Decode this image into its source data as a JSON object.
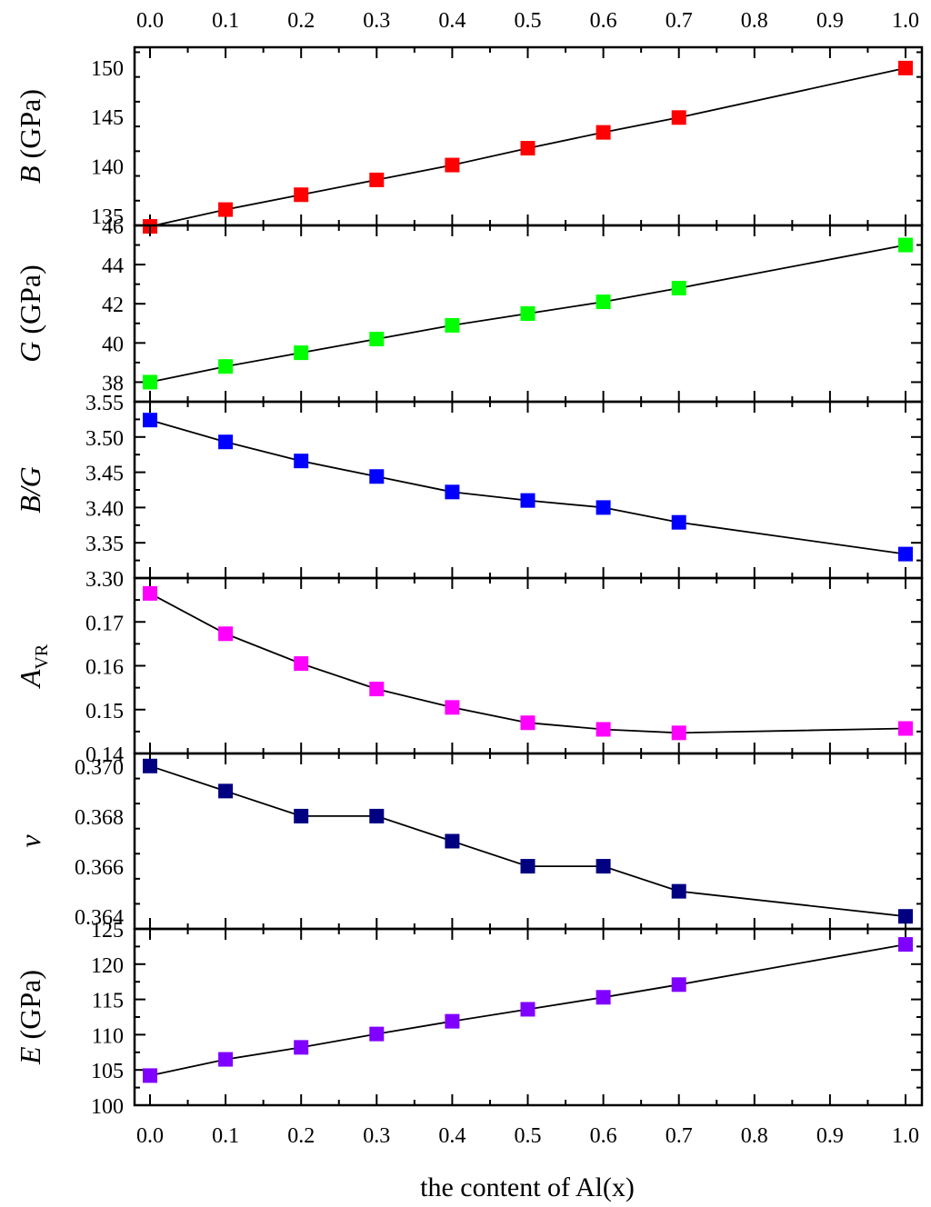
{
  "chart_data": {
    "type": "line",
    "layout": "stacked-panels",
    "xlabel": "the content of Al(x)",
    "xlim": [
      0.0,
      1.0
    ],
    "xticks": [
      "0.0",
      "0.1",
      "0.2",
      "0.3",
      "0.4",
      "0.5",
      "0.6",
      "0.7",
      "0.8",
      "0.9",
      "1.0"
    ],
    "x": [
      0.0,
      0.1,
      0.2,
      0.3,
      0.4,
      0.5,
      0.6,
      0.7,
      1.0
    ],
    "panels": [
      {
        "name": "bulk-modulus",
        "ylabel_main": "B",
        "ylabel_sub": "",
        "ylabel_unit": " (GPa)",
        "ylim": [
          134,
          152
        ],
        "yticks": [
          "135",
          "140",
          "145",
          "150"
        ],
        "color": "#ff0000",
        "values": [
          133.9,
          135.6,
          137.1,
          138.6,
          140.1,
          141.8,
          143.4,
          144.9,
          149.9
        ]
      },
      {
        "name": "shear-modulus",
        "ylabel_main": "G",
        "ylabel_sub": "",
        "ylabel_unit": " (GPa)",
        "ylim": [
          37,
          46
        ],
        "yticks": [
          "38",
          "40",
          "42",
          "44",
          "46"
        ],
        "color": "#00ff00",
        "values": [
          38.0,
          38.8,
          39.5,
          40.2,
          40.9,
          41.5,
          42.1,
          42.8,
          45.0
        ]
      },
      {
        "name": "pugh-ratio",
        "ylabel_main": "B/G",
        "ylabel_sub": "",
        "ylabel_unit": "",
        "ylim": [
          3.3,
          3.55
        ],
        "yticks": [
          "3.30",
          "3.35",
          "3.40",
          "3.45",
          "3.50",
          "3.55"
        ],
        "color": "#0000ff",
        "values": [
          3.524,
          3.493,
          3.466,
          3.444,
          3.422,
          3.41,
          3.4,
          3.379,
          3.334
        ]
      },
      {
        "name": "anisotropy",
        "ylabel_main": "A",
        "ylabel_sub": "VR",
        "ylabel_unit": "",
        "ylim": [
          0.14,
          0.18
        ],
        "yticks": [
          "0.14",
          "0.15",
          "0.16",
          "0.17"
        ],
        "color": "#ff00ff",
        "values": [
          0.1765,
          0.1673,
          0.1605,
          0.1547,
          0.1505,
          0.147,
          0.1455,
          0.1447,
          0.1457
        ]
      },
      {
        "name": "poisson-ratio",
        "ylabel_main": "ν",
        "ylabel_sub": "",
        "ylabel_unit": "",
        "ylim": [
          0.3635,
          0.3705
        ],
        "yticks": [
          "0.364",
          "0.366",
          "0.368",
          "0.370"
        ],
        "color": "#000080",
        "values": [
          0.37,
          0.369,
          0.368,
          0.368,
          0.367,
          0.366,
          0.366,
          0.365,
          0.364
        ]
      },
      {
        "name": "youngs-modulus",
        "ylabel_main": "E",
        "ylabel_sub": "",
        "ylabel_unit": " (GPa)",
        "ylim": [
          100,
          125
        ],
        "yticks": [
          "100",
          "105",
          "110",
          "115",
          "120",
          "125"
        ],
        "color": "#8000ff",
        "values": [
          104.2,
          106.5,
          108.2,
          110.1,
          111.9,
          113.6,
          115.3,
          117.1,
          122.8
        ]
      }
    ]
  }
}
